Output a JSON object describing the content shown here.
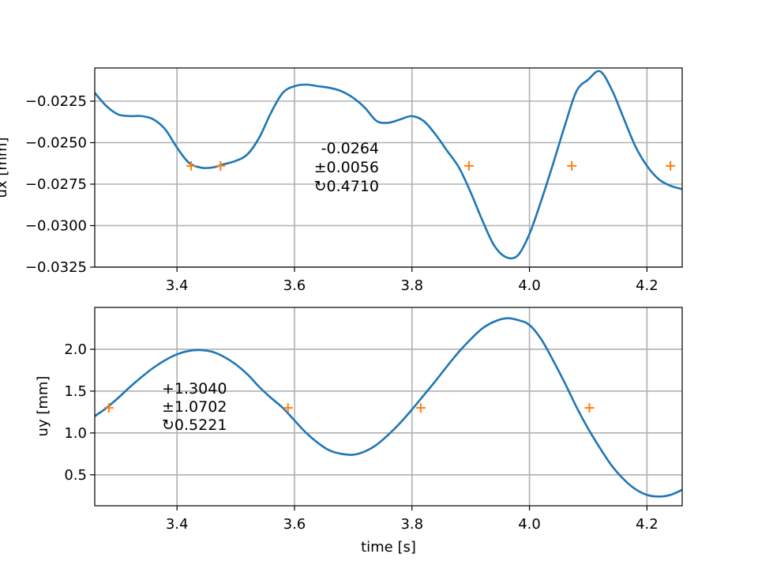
{
  "colors": {
    "line": "#1f77b4",
    "marker": "#ff7f0e",
    "grid": "#b0b0b0"
  },
  "chart_data": [
    {
      "type": "line",
      "ylabel": "ux [mm]",
      "xlabel": "",
      "xlim": [
        3.26,
        4.26
      ],
      "ylim": [
        -0.0325,
        -0.0205
      ],
      "xticks": [
        3.4,
        3.6,
        3.8,
        4.0,
        4.2
      ],
      "xtick_labels": [
        "3.4",
        "3.6",
        "3.8",
        "4.0",
        "4.2"
      ],
      "yticks": [
        -0.0225,
        -0.025,
        -0.0275,
        -0.03,
        -0.0325
      ],
      "ytick_labels": [
        "−0.0225",
        "−0.0250",
        "−0.0275",
        "−0.0300",
        "−0.0325"
      ],
      "grid": true,
      "series": [
        {
          "x": [
            3.26,
            3.28,
            3.3,
            3.32,
            3.34,
            3.36,
            3.38,
            3.4,
            3.42,
            3.44,
            3.46,
            3.48,
            3.5,
            3.52,
            3.54,
            3.56,
            3.58,
            3.6,
            3.62,
            3.64,
            3.66,
            3.68,
            3.7,
            3.72,
            3.74,
            3.76,
            3.78,
            3.8,
            3.82,
            3.84,
            3.86,
            3.88,
            3.9,
            3.92,
            3.94,
            3.96,
            3.98,
            4.0,
            4.02,
            4.04,
            4.06,
            4.08,
            4.1,
            4.12,
            4.14,
            4.16,
            4.18,
            4.2,
            4.22,
            4.24,
            4.26
          ],
          "y": [
            -0.022,
            -0.0228,
            -0.0233,
            -0.0234,
            -0.0234,
            -0.0236,
            -0.0242,
            -0.0253,
            -0.0262,
            -0.0265,
            -0.0265,
            -0.0263,
            -0.0261,
            -0.0257,
            -0.0247,
            -0.0232,
            -0.022,
            -0.0216,
            -0.0215,
            -0.0216,
            -0.0217,
            -0.0219,
            -0.0223,
            -0.0229,
            -0.0237,
            -0.0238,
            -0.0236,
            -0.0234,
            -0.0237,
            -0.0245,
            -0.0255,
            -0.0265,
            -0.028,
            -0.0297,
            -0.0312,
            -0.0319,
            -0.0318,
            -0.0305,
            -0.0285,
            -0.0263,
            -0.024,
            -0.0219,
            -0.0212,
            -0.0207,
            -0.0218,
            -0.0235,
            -0.0252,
            -0.0264,
            -0.0272,
            -0.0276,
            -0.0278
          ]
        },
        {
          "x": [
            3.424,
            3.474,
            3.897,
            4.072,
            4.24
          ],
          "y": [
            -0.0264,
            -0.0264,
            -0.0264,
            -0.0264,
            -0.0264
          ]
        }
      ],
      "annotation": [
        "-0.0264",
        "±0.0056",
        "↻0.4710"
      ]
    },
    {
      "type": "line",
      "ylabel": "uy [mm]",
      "xlabel": "time [s]",
      "xlim": [
        3.26,
        4.26
      ],
      "ylim": [
        0.13,
        2.5
      ],
      "xticks": [
        3.4,
        3.6,
        3.8,
        4.0,
        4.2
      ],
      "xtick_labels": [
        "3.4",
        "3.6",
        "3.8",
        "4.0",
        "4.2"
      ],
      "yticks": [
        0.5,
        1.0,
        1.5,
        2.0
      ],
      "ytick_labels": [
        "0.5",
        "1.0",
        "1.5",
        "2.0"
      ],
      "grid": true,
      "series": [
        {
          "x": [
            3.26,
            3.28,
            3.3,
            3.32,
            3.34,
            3.36,
            3.38,
            3.4,
            3.42,
            3.44,
            3.46,
            3.48,
            3.5,
            3.52,
            3.54,
            3.56,
            3.58,
            3.6,
            3.62,
            3.64,
            3.66,
            3.68,
            3.7,
            3.72,
            3.74,
            3.76,
            3.78,
            3.8,
            3.82,
            3.84,
            3.86,
            3.88,
            3.9,
            3.92,
            3.94,
            3.96,
            3.98,
            4.0,
            4.02,
            4.04,
            4.06,
            4.08,
            4.1,
            4.12,
            4.14,
            4.16,
            4.18,
            4.2,
            4.22,
            4.24,
            4.26
          ],
          "y": [
            1.2,
            1.3,
            1.42,
            1.55,
            1.67,
            1.78,
            1.87,
            1.94,
            1.98,
            1.99,
            1.97,
            1.91,
            1.82,
            1.7,
            1.55,
            1.42,
            1.3,
            1.15,
            1.0,
            0.88,
            0.79,
            0.75,
            0.74,
            0.78,
            0.86,
            0.98,
            1.12,
            1.28,
            1.45,
            1.62,
            1.8,
            1.97,
            2.12,
            2.25,
            2.33,
            2.37,
            2.35,
            2.29,
            2.12,
            1.87,
            1.6,
            1.31,
            1.05,
            0.82,
            0.61,
            0.45,
            0.33,
            0.26,
            0.24,
            0.26,
            0.32
          ]
        },
        {
          "x": [
            3.284,
            3.589,
            3.815,
            4.102
          ],
          "y": [
            1.3,
            1.3,
            1.3,
            1.3
          ]
        }
      ],
      "annotation": [
        "+1.3040",
        "±1.0702",
        "↻0.5221"
      ]
    }
  ]
}
